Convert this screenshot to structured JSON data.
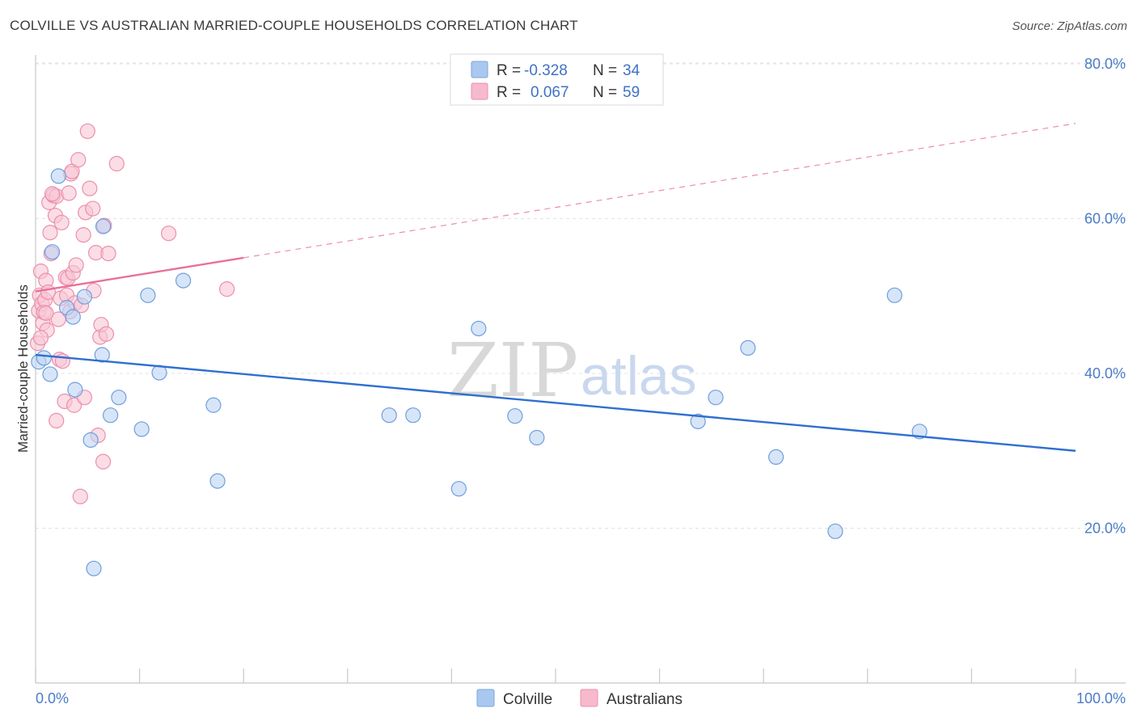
{
  "header": {
    "title": "COLVILLE VS AUSTRALIAN MARRIED-COUPLE HOUSEHOLDS CORRELATION CHART",
    "source": "Source: ZipAtlas.com"
  },
  "watermark": {
    "zip": "ZIP",
    "atlas": "atlas"
  },
  "legend_top": {
    "rows": [
      {
        "r_label": "R =",
        "r_value": "-0.328",
        "n_label": "N =",
        "n_value": "34",
        "color": "#a9c8f0",
        "stroke": "#7aa6de"
      },
      {
        "r_label": "R =",
        "r_value": "0.067",
        "n_label": "N =",
        "n_value": "59",
        "color": "#f7b9cc",
        "stroke": "#ec8fac"
      }
    ]
  },
  "legend_bottom": {
    "items": [
      {
        "label": "Colville",
        "color": "#a9c8f0",
        "stroke": "#7aa6de"
      },
      {
        "label": "Australians",
        "color": "#f7b9cc",
        "stroke": "#ec8fac"
      }
    ]
  },
  "chart_data": {
    "type": "scatter",
    "title": "COLVILLE VS AUSTRALIAN MARRIED-COUPLE HOUSEHOLDS CORRELATION CHART",
    "xlabel": "",
    "ylabel": "Married-couple Households",
    "xlim": [
      0,
      100
    ],
    "ylim": [
      0,
      84
    ],
    "x_tick_labels": [
      "0.0%",
      "100.0%"
    ],
    "y_ticks": [
      20,
      40,
      60,
      80
    ],
    "y_tick_labels": [
      "20.0%",
      "40.0%",
      "60.0%",
      "80.0%"
    ],
    "grid": true,
    "legend_position": "top-center",
    "series": [
      {
        "name": "Colville",
        "color": "#6f9fdc",
        "fill": "#bcd4f3",
        "trend_color": "#2f6fd0",
        "trend": {
          "x": [
            0,
            100
          ],
          "y": [
            42.4,
            30.0
          ],
          "dashed_from": null
        },
        "points": [
          [
            0.3,
            41.5
          ],
          [
            1.6,
            55.7
          ],
          [
            2.2,
            65.5
          ],
          [
            3.0,
            48.5
          ],
          [
            3.6,
            47.3
          ],
          [
            3.8,
            37.9
          ],
          [
            4.7,
            49.9
          ],
          [
            5.3,
            31.4
          ],
          [
            6.4,
            42.4
          ],
          [
            6.5,
            59.0
          ],
          [
            7.2,
            34.6
          ],
          [
            8.0,
            36.9
          ],
          [
            10.2,
            32.8
          ],
          [
            10.8,
            50.1
          ],
          [
            11.9,
            40.1
          ],
          [
            14.2,
            52.0
          ],
          [
            17.1,
            35.9
          ],
          [
            17.5,
            26.1
          ],
          [
            34.0,
            34.6
          ],
          [
            36.3,
            34.6
          ],
          [
            40.7,
            25.1
          ],
          [
            42.6,
            45.8
          ],
          [
            46.1,
            34.5
          ],
          [
            48.2,
            31.7
          ],
          [
            63.7,
            33.8
          ],
          [
            65.4,
            36.9
          ],
          [
            68.5,
            43.3
          ],
          [
            71.2,
            29.2
          ],
          [
            76.9,
            19.6
          ],
          [
            82.6,
            50.1
          ],
          [
            85.0,
            32.5
          ],
          [
            5.6,
            14.8
          ],
          [
            1.4,
            39.9
          ],
          [
            0.8,
            42.0
          ]
        ]
      },
      {
        "name": "Australians",
        "color": "#ec8fac",
        "fill": "#f9c6d5",
        "trend_color": "#e8709a",
        "trend": {
          "x": [
            0,
            100
          ],
          "y": [
            50.6,
            72.3
          ],
          "solid_until": 20
        },
        "points": [
          [
            0.2,
            43.9
          ],
          [
            0.3,
            48.1
          ],
          [
            0.4,
            50.1
          ],
          [
            0.5,
            53.2
          ],
          [
            0.6,
            49.0
          ],
          [
            0.7,
            46.5
          ],
          [
            0.8,
            47.9
          ],
          [
            0.9,
            49.5
          ],
          [
            1.0,
            52.0
          ],
          [
            1.1,
            45.6
          ],
          [
            1.2,
            50.5
          ],
          [
            1.3,
            62.1
          ],
          [
            1.4,
            58.2
          ],
          [
            1.5,
            55.5
          ],
          [
            1.7,
            63.0
          ],
          [
            1.9,
            60.4
          ],
          [
            2.0,
            62.9
          ],
          [
            2.2,
            47.0
          ],
          [
            2.3,
            41.8
          ],
          [
            2.4,
            49.7
          ],
          [
            2.5,
            59.5
          ],
          [
            2.6,
            41.6
          ],
          [
            2.8,
            36.4
          ],
          [
            2.9,
            52.4
          ],
          [
            3.0,
            50.1
          ],
          [
            3.1,
            52.3
          ],
          [
            3.2,
            63.3
          ],
          [
            3.3,
            48.0
          ],
          [
            3.4,
            65.8
          ],
          [
            3.5,
            66.1
          ],
          [
            3.6,
            53.0
          ],
          [
            3.7,
            35.9
          ],
          [
            3.8,
            49.1
          ],
          [
            3.9,
            54.0
          ],
          [
            4.1,
            67.6
          ],
          [
            4.3,
            24.1
          ],
          [
            4.6,
            57.9
          ],
          [
            4.7,
            36.9
          ],
          [
            4.8,
            60.8
          ],
          [
            5.0,
            71.3
          ],
          [
            5.2,
            63.9
          ],
          [
            5.5,
            61.3
          ],
          [
            5.6,
            50.7
          ],
          [
            5.8,
            55.6
          ],
          [
            6.0,
            32.0
          ],
          [
            6.2,
            44.7
          ],
          [
            6.3,
            46.3
          ],
          [
            6.5,
            28.6
          ],
          [
            6.6,
            59.1
          ],
          [
            6.8,
            45.1
          ],
          [
            7.0,
            55.5
          ],
          [
            7.8,
            67.1
          ],
          [
            12.8,
            58.1
          ],
          [
            18.4,
            50.9
          ],
          [
            2.0,
            33.9
          ],
          [
            1.0,
            47.8
          ],
          [
            0.5,
            44.6
          ],
          [
            1.6,
            63.2
          ],
          [
            4.4,
            48.8
          ]
        ]
      }
    ]
  }
}
